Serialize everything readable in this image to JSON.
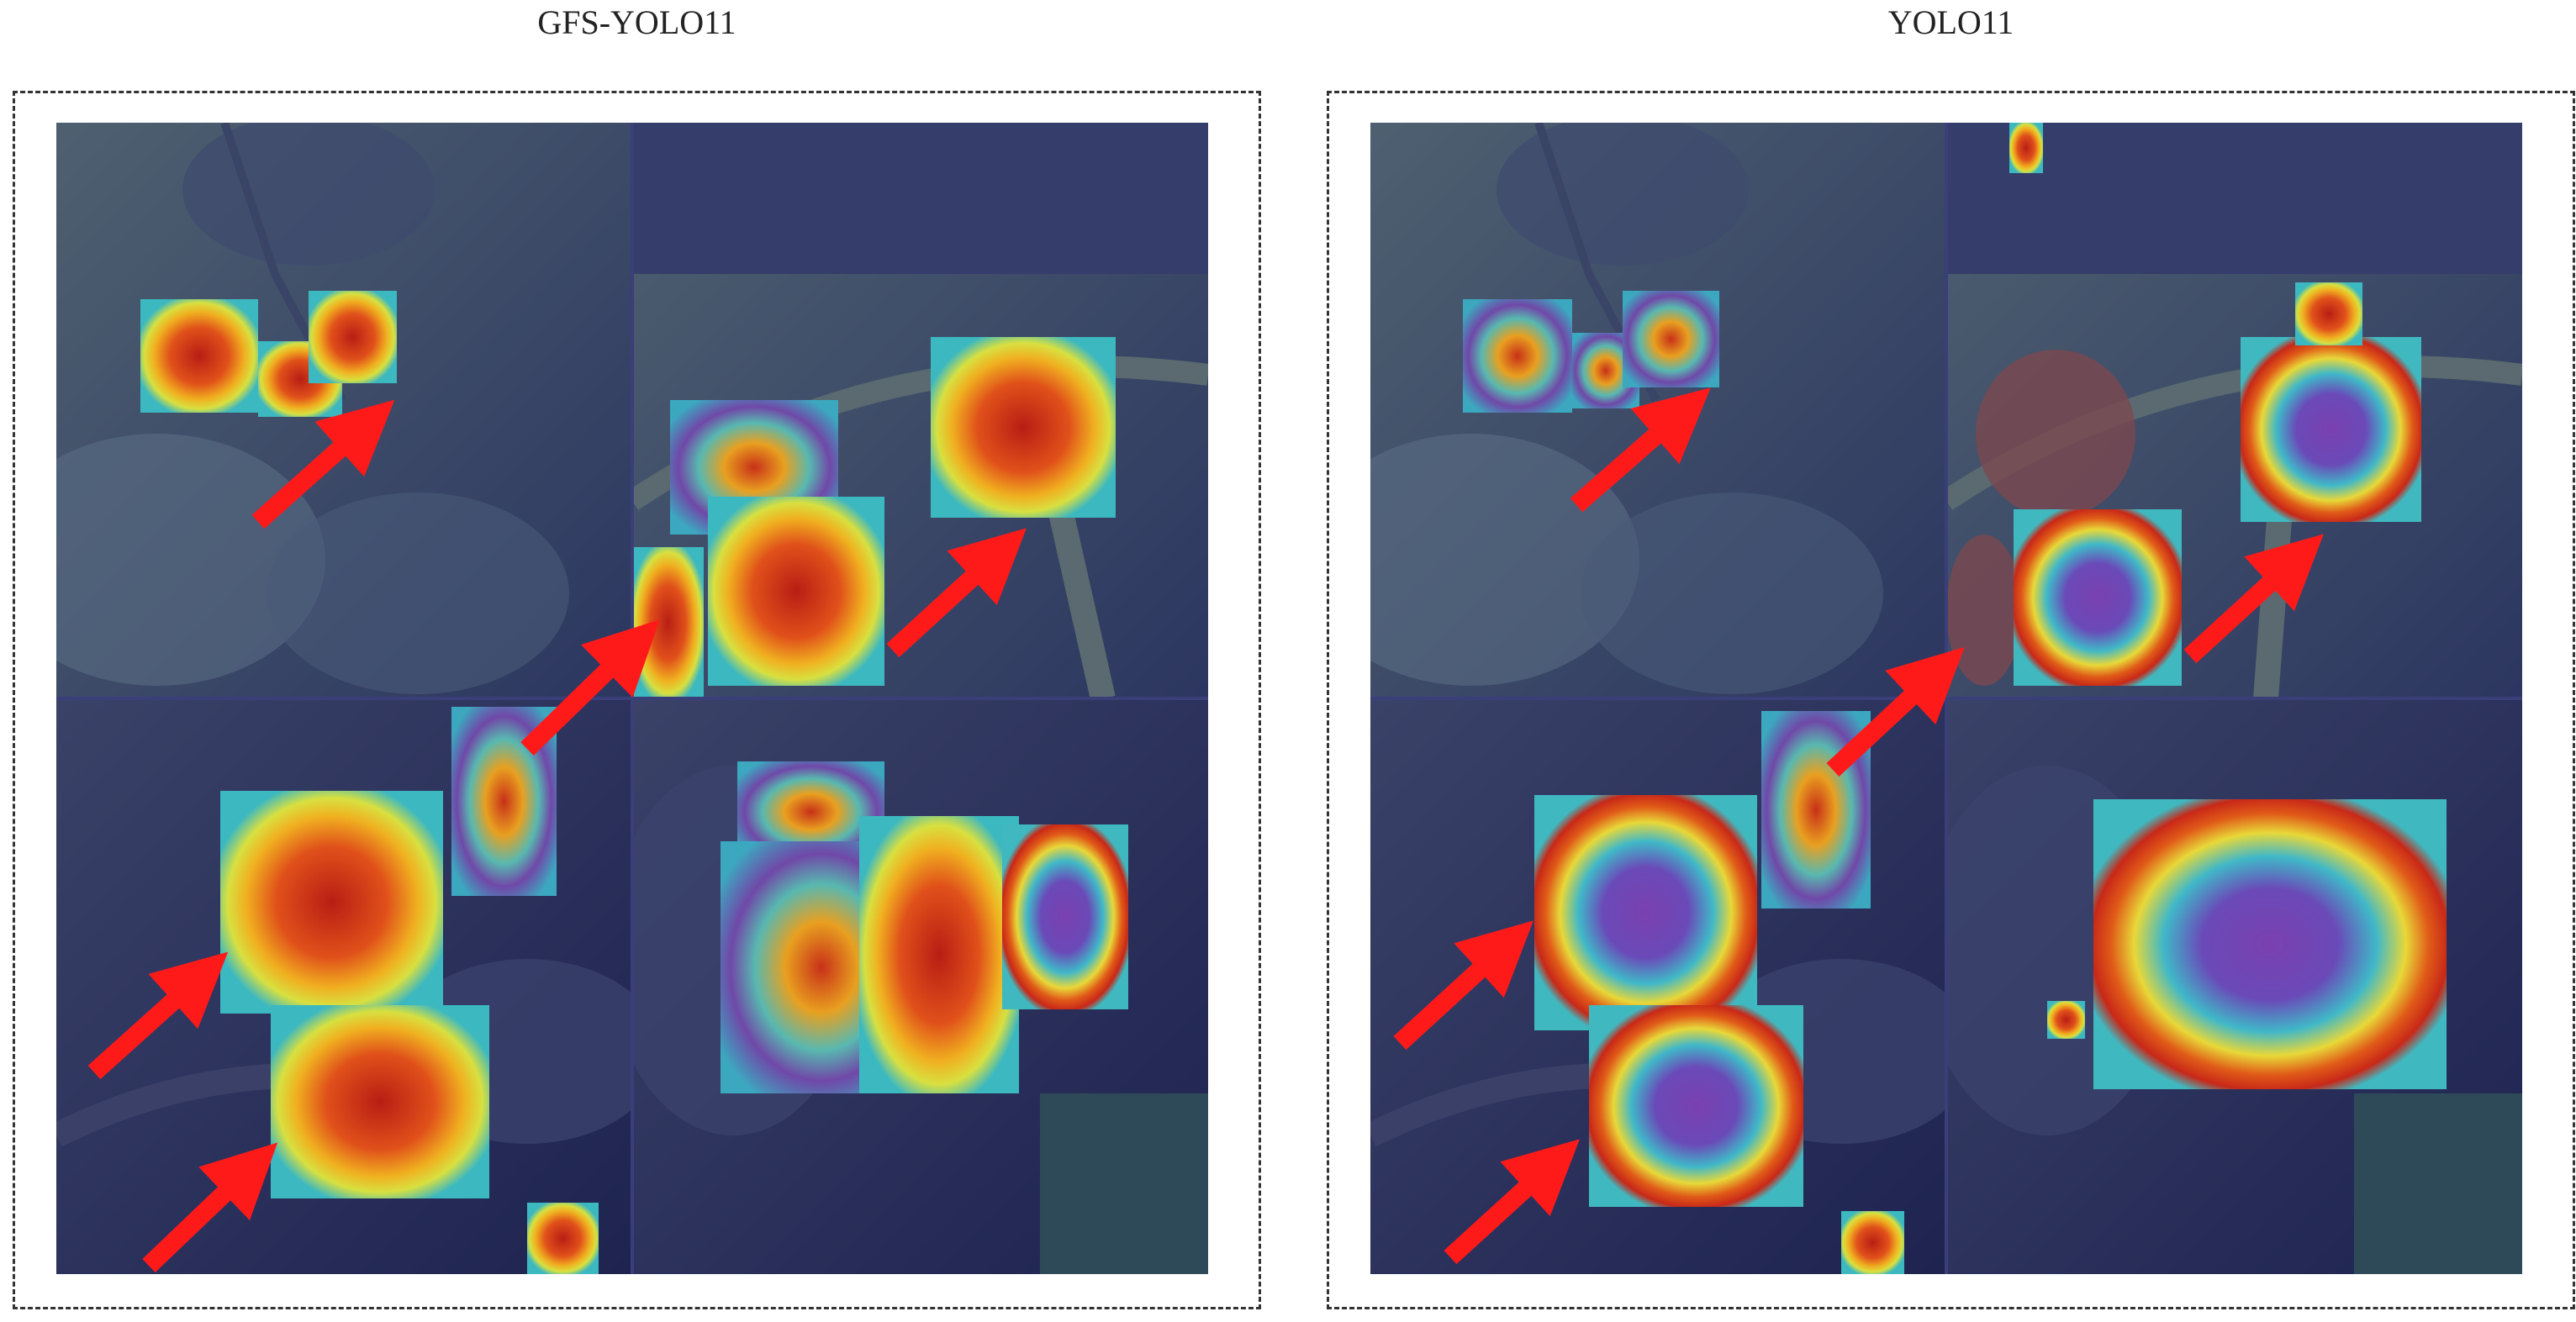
{
  "panels": [
    {
      "title": "GFS-YOLO11"
    },
    {
      "title": "YOLO11"
    }
  ],
  "colors": {
    "background_tint": "#2a2f66",
    "foliage": "#4a5a7a",
    "arrow": "#ff1a1a",
    "heat_hot": "#c8281e",
    "heat_warm": "#f0a020",
    "heat_mid": "#e8e040",
    "heat_cool": "#3cc8c8",
    "heat_cold": "#6a3ca0"
  },
  "icons": [
    "arrow-icon"
  ]
}
